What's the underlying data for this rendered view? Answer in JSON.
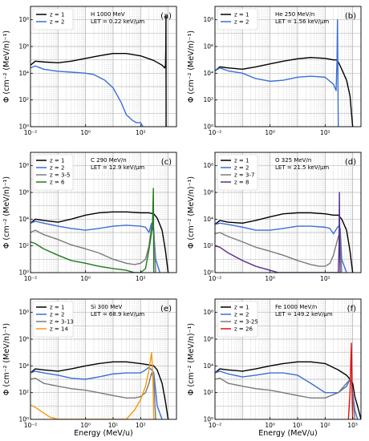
{
  "figure": {
    "ylabel": "Φ (cm⁻² (MeV/n)⁻¹)",
    "xlabel": "Energy (MeV/u)"
  },
  "chart_data": [
    {
      "type": "line",
      "tag": "(a)",
      "ion": "H 1000 MeV",
      "let": "LET = 0.22 keV/µm",
      "x_scale": "log",
      "y_scale": "log",
      "xlim": [
        0.01,
        2000
      ],
      "ylim": [
        1,
        1000000000.0
      ],
      "x_ticks": [
        "10⁻²",
        "10⁰",
        "10²"
      ],
      "y_ticks": [
        "10⁰",
        "10²",
        "10⁴",
        "10⁶",
        "10⁸"
      ],
      "grid": "on",
      "legend": "top-left",
      "series": [
        {
          "name": "z = 1",
          "color": "#000000",
          "x": [
            0.01,
            0.015,
            0.03,
            0.1,
            0.3,
            1,
            3,
            10,
            30,
            100,
            300,
            600,
            750,
            800,
            820,
            830,
            840
          ],
          "y": [
            40000,
            80000,
            70000,
            60000,
            80000,
            130000,
            200000,
            300000,
            300000,
            200000,
            90000,
            40000,
            25000,
            40000,
            1000000,
            200000000,
            1
          ]
        },
        {
          "name": "z = 2",
          "color": "#3a6fd8",
          "x": [
            0.01,
            0.015,
            0.03,
            0.1,
            0.3,
            1,
            2,
            5,
            10,
            20,
            30,
            50,
            70,
            100,
            120
          ],
          "y": [
            25000,
            35000,
            20000,
            14000,
            12000,
            10000,
            8000,
            3000,
            800,
            60,
            8,
            3,
            2,
            2,
            1
          ]
        }
      ]
    },
    {
      "type": "line",
      "tag": "(b)",
      "ion": "He 250 MeV/n",
      "let": "LET = 1.56 keV/µm",
      "x_scale": "log",
      "y_scale": "log",
      "xlim": [
        0.01,
        2000
      ],
      "ylim": [
        1,
        1000000000.0
      ],
      "x_ticks": [
        "10⁻²",
        "10⁰",
        "10²"
      ],
      "y_ticks": [
        "10⁰",
        "10²",
        "10⁴",
        "10⁶",
        "10⁸"
      ],
      "grid": "on",
      "legend": "top-left",
      "series": [
        {
          "name": "z = 1",
          "color": "#000000",
          "x": [
            0.01,
            0.015,
            0.03,
            0.1,
            0.3,
            1,
            3,
            10,
            30,
            100,
            200,
            250,
            300,
            400,
            600,
            800,
            1000
          ],
          "y": [
            15000,
            30000,
            25000,
            20000,
            30000,
            50000,
            80000,
            120000,
            150000,
            130000,
            100000,
            100000,
            70000,
            20000,
            3000,
            200,
            1
          ]
        },
        {
          "name": "z = 2",
          "color": "#3a6fd8",
          "x": [
            0.01,
            0.015,
            0.03,
            0.1,
            0.3,
            1,
            3,
            10,
            30,
            100,
            200,
            250,
            270,
            280,
            290,
            300
          ],
          "y": [
            15000,
            25000,
            15000,
            10000,
            4000,
            2500,
            3000,
            5000,
            6000,
            5000,
            1500,
            500,
            100000,
            100000000,
            10000,
            1
          ]
        }
      ]
    },
    {
      "type": "line",
      "tag": "(c)",
      "ion": "C 290 MeV/n",
      "let": "LET = 12.9 keV/µm",
      "x_scale": "log",
      "y_scale": "log",
      "xlim": [
        0.01,
        2000
      ],
      "ylim": [
        1,
        1000000000.0
      ],
      "x_ticks": [
        "10⁻²",
        "10⁰",
        "10²"
      ],
      "y_ticks": [
        "10⁰",
        "10²",
        "10⁴",
        "10⁶",
        "10⁸"
      ],
      "grid": "on",
      "legend": "top-left",
      "series": [
        {
          "name": "z = 1",
          "color": "#000000",
          "x": [
            0.01,
            0.015,
            0.03,
            0.1,
            0.3,
            1,
            3,
            10,
            30,
            100,
            200,
            300,
            400,
            600,
            800,
            1000
          ],
          "y": [
            5000,
            10000,
            8000,
            6000,
            10000,
            20000,
            30000,
            35000,
            35000,
            30000,
            30000,
            25000,
            12000,
            1500,
            40,
            1
          ]
        },
        {
          "name": "z = 2",
          "color": "#3a6fd8",
          "x": [
            0.01,
            0.015,
            0.03,
            0.1,
            0.3,
            1,
            3,
            10,
            30,
            100,
            150,
            200,
            250,
            300,
            350,
            500
          ],
          "y": [
            5000,
            7000,
            5000,
            3000,
            2000,
            1500,
            2000,
            3000,
            3500,
            3000,
            2500,
            1000,
            5000,
            1000,
            10,
            1
          ]
        },
        {
          "name": "z = 3-5",
          "color": "#7a7a7a",
          "x": [
            0.01,
            0.015,
            0.03,
            0.1,
            0.3,
            1,
            3,
            10,
            30,
            60,
            100,
            150,
            200,
            250,
            300,
            350
          ],
          "y": [
            1000,
            1500,
            700,
            300,
            120,
            60,
            30,
            10,
            5,
            4,
            5,
            10,
            100,
            3000,
            2000,
            1
          ]
        },
        {
          "name": "z = 6",
          "color": "#1e7a1e",
          "x": [
            0.01,
            0.015,
            0.03,
            0.1,
            0.3,
            1,
            3,
            10,
            30,
            60,
            100,
            150,
            200,
            250,
            270,
            280,
            290,
            300
          ],
          "y": [
            200,
            150,
            60,
            20,
            8,
            5,
            3,
            2,
            1.5,
            1,
            1,
            2,
            50,
            1000,
            5000,
            100000,
            2000000,
            1
          ]
        }
      ]
    },
    {
      "type": "line",
      "tag": "(d)",
      "ion": "O 325 MeV/n",
      "let": "LET = 21.5 keV/µm",
      "x_scale": "log",
      "y_scale": "log",
      "xlim": [
        0.01,
        2000
      ],
      "ylim": [
        1,
        1000000000.0
      ],
      "x_ticks": [
        "10⁻²",
        "10⁰",
        "10²"
      ],
      "y_ticks": [
        "10⁰",
        "10²",
        "10⁴",
        "10⁶",
        "10⁸"
      ],
      "grid": "on",
      "legend": "top-left",
      "series": [
        {
          "name": "z = 1",
          "color": "#000000",
          "x": [
            0.01,
            0.015,
            0.03,
            0.1,
            0.3,
            1,
            3,
            10,
            30,
            100,
            200,
            300,
            400,
            600,
            800,
            1000
          ],
          "y": [
            4000,
            8000,
            6000,
            5000,
            8000,
            15000,
            25000,
            30000,
            30000,
            25000,
            20000,
            20000,
            10000,
            1500,
            40,
            1
          ]
        },
        {
          "name": "z = 2",
          "color": "#3a6fd8",
          "x": [
            0.01,
            0.015,
            0.03,
            0.1,
            0.3,
            1,
            3,
            10,
            30,
            100,
            150,
            200,
            300,
            350,
            400,
            600
          ],
          "y": [
            4000,
            5000,
            4000,
            2500,
            1500,
            1500,
            2000,
            3000,
            3000,
            2500,
            2000,
            800,
            3000,
            2000,
            10,
            1
          ]
        },
        {
          "name": "z = 3-7",
          "color": "#7a7a7a",
          "x": [
            0.01,
            0.015,
            0.03,
            0.1,
            0.3,
            1,
            3,
            10,
            30,
            60,
            100,
            150,
            200,
            300,
            350,
            400
          ],
          "y": [
            800,
            1000,
            500,
            200,
            80,
            40,
            20,
            8,
            4,
            3,
            3,
            5,
            20,
            500,
            1000,
            1
          ]
        },
        {
          "name": "z = 8",
          "color": "#5a2d8c",
          "x": [
            0.01,
            0.015,
            0.03,
            0.1,
            0.3,
            1,
            2,
            3,
            300,
            320,
            330,
            340,
            350
          ],
          "y": [
            100,
            80,
            30,
            8,
            3,
            1.5,
            1,
            1,
            1,
            100,
            1000000,
            100,
            1
          ]
        }
      ]
    },
    {
      "type": "line",
      "tag": "(e)",
      "ion": "Si 300 MeV",
      "let": "LET = 68.9 keV/µm",
      "x_scale": "log",
      "y_scale": "log",
      "xlim": [
        0.01,
        2000
      ],
      "ylim": [
        1,
        1000000000.0
      ],
      "x_ticks": [
        "10⁻²",
        "10⁰",
        "10¹",
        "10²"
      ],
      "y_ticks": [
        "10⁰",
        "10²",
        "10⁴",
        "10⁶",
        "10⁸"
      ],
      "grid": "on",
      "legend": "top-left",
      "series": [
        {
          "name": "z = 1",
          "color": "#000000",
          "x": [
            0.01,
            0.015,
            0.03,
            0.1,
            0.3,
            1,
            3,
            10,
            30,
            100,
            200,
            300,
            400,
            600,
            800,
            1000
          ],
          "y": [
            3000,
            6000,
            5000,
            4000,
            6000,
            10000,
            15000,
            20000,
            20000,
            15000,
            12000,
            10000,
            5000,
            500,
            20,
            1
          ]
        },
        {
          "name": "z = 2",
          "color": "#3a6fd8",
          "x": [
            0.01,
            0.015,
            0.03,
            0.1,
            0.3,
            1,
            3,
            10,
            30,
            100,
            150,
            200,
            250,
            300,
            400,
            600
          ],
          "y": [
            3000,
            4000,
            3000,
            2000,
            1200,
            1000,
            1500,
            2500,
            3000,
            3000,
            5000,
            8000,
            5000,
            3000,
            10,
            1
          ]
        },
        {
          "name": "z = 3-13",
          "color": "#7a7a7a",
          "x": [
            0.01,
            0.015,
            0.03,
            0.1,
            0.3,
            1,
            3,
            10,
            30,
            60,
            100,
            150,
            200,
            250,
            300,
            350
          ],
          "y": [
            1000,
            1200,
            500,
            300,
            200,
            150,
            100,
            60,
            40,
            40,
            50,
            100,
            500,
            3000,
            1000,
            1
          ]
        },
        {
          "name": "z = 14",
          "color": "#f59a0a",
          "x": [
            0.01,
            0.015,
            0.03,
            0.05,
            0.1,
            10,
            30,
            60,
            100,
            150,
            200,
            250,
            280,
            300
          ],
          "y": [
            12,
            8,
            3,
            1.5,
            1,
            1,
            1,
            5,
            30,
            300,
            5000,
            100000,
            1000,
            1
          ]
        }
      ]
    },
    {
      "type": "line",
      "tag": "(f)",
      "ion": "Fe 1000 MeV/n",
      "let": "LET = 149.2 keV/µm",
      "x_scale": "log",
      "y_scale": "log",
      "xlim": [
        0.01,
        2000
      ],
      "ylim": [
        1,
        1000000000.0
      ],
      "x_ticks": [
        "10⁻²",
        "10⁰",
        "10¹",
        "10²",
        "10³"
      ],
      "y_ticks": [
        "10⁰",
        "10²",
        "10⁴",
        "10⁶",
        "10⁸"
      ],
      "grid": "on",
      "legend": "top-left",
      "series": [
        {
          "name": "z = 1",
          "color": "#000000",
          "x": [
            0.01,
            0.015,
            0.03,
            0.1,
            0.3,
            1,
            3,
            10,
            30,
            100,
            300,
            600,
            800,
            1000,
            1200,
            1500,
            2000
          ],
          "y": [
            3000,
            6000,
            5000,
            4000,
            6000,
            10000,
            15000,
            20000,
            20000,
            15000,
            5000,
            2000,
            1000,
            500,
            50,
            10,
            1
          ]
        },
        {
          "name": "z = 2",
          "color": "#3a6fd8",
          "x": [
            0.01,
            0.015,
            0.03,
            0.1,
            0.3,
            1,
            3,
            10,
            30,
            100,
            300,
            600,
            800,
            900,
            1000,
            1200,
            1500
          ],
          "y": [
            3000,
            4000,
            2500,
            1500,
            2000,
            3000,
            3000,
            2000,
            500,
            100,
            100,
            300,
            1000,
            800,
            100,
            5,
            1
          ]
        },
        {
          "name": "z = 3-25",
          "color": "#7a7a7a",
          "x": [
            0.01,
            0.015,
            0.03,
            0.1,
            0.3,
            1,
            3,
            10,
            30,
            100,
            300,
            600,
            800,
            900,
            1000,
            1200
          ],
          "y": [
            1000,
            1200,
            500,
            300,
            200,
            150,
            100,
            60,
            40,
            40,
            100,
            500,
            1000,
            800,
            50,
            1
          ]
        },
        {
          "name": "z = 26",
          "color": "#e01010",
          "x": [
            700,
            800,
            850,
            900,
            950,
            1000
          ],
          "y": [
            1,
            100,
            10000,
            500000,
            100,
            1
          ]
        }
      ]
    }
  ]
}
